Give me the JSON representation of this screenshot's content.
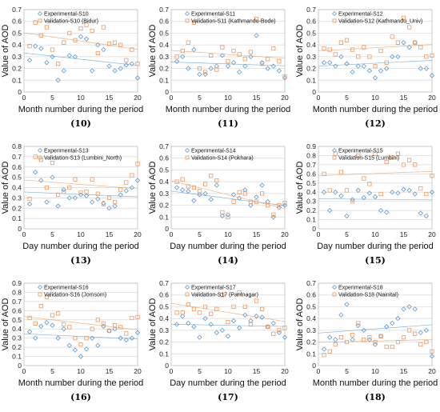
{
  "colors": {
    "experimental": "#5b9bd5",
    "validation": "#ed9a5e"
  },
  "chart_data": [
    {
      "type": "scatter",
      "label": "(10)",
      "xlabel": "Month number during the period",
      "ylabel": "Value of AOD",
      "xlim": [
        0,
        20
      ],
      "ylim": [
        0,
        0.7
      ],
      "xticks": [
        0,
        5,
        10,
        15,
        20
      ],
      "yticks": [
        0,
        0.1,
        0.2,
        0.3,
        0.4,
        0.5,
        0.6,
        0.7
      ],
      "series": [
        {
          "name": "Experimental-S10",
          "marker": "diamond",
          "x": [
            1,
            2,
            3,
            4,
            5,
            6,
            7,
            8,
            9,
            10,
            11,
            12,
            13,
            14,
            15,
            16,
            17,
            18,
            19,
            20
          ],
          "y": [
            0.27,
            0.39,
            0.37,
            0.25,
            0.3,
            0.1,
            0.18,
            0.31,
            0.3,
            0.47,
            0.45,
            0.18,
            0.4,
            0.36,
            0.22,
            0.18,
            0.2,
            0.23,
            0.24,
            0.12
          ]
        },
        {
          "name": "Validation-S10 (Bidur)",
          "marker": "square",
          "x": [
            1,
            2,
            3,
            4,
            5,
            6,
            7,
            8,
            9,
            10,
            11,
            12,
            13,
            14,
            15,
            16,
            17,
            18,
            19,
            20
          ],
          "y": [
            0.39,
            0.59,
            0.48,
            0.55,
            0.36,
            0.24,
            0.42,
            0.5,
            0.44,
            0.54,
            0.57,
            0.52,
            0.33,
            0.55,
            0.41,
            0.42,
            0.4,
            0.27,
            0.36,
            0.24
          ]
        }
      ]
    },
    {
      "type": "scatter",
      "label": "(11)",
      "xlabel": "Month number during the period",
      "ylabel": "Value of AOD",
      "xlim": [
        0,
        20
      ],
      "ylim": [
        0,
        0.7
      ],
      "xticks": [
        0,
        5,
        10,
        15,
        20
      ],
      "yticks": [
        0,
        0.1,
        0.2,
        0.3,
        0.4,
        0.5,
        0.6,
        0.7
      ],
      "series": [
        {
          "name": "Experimental-S11",
          "marker": "diamond",
          "x": [
            1,
            2,
            3,
            4,
            5,
            6,
            7,
            8,
            9,
            10,
            11,
            12,
            13,
            14,
            15,
            16,
            17,
            18,
            19,
            20
          ],
          "y": [
            0.26,
            0.3,
            0.2,
            0.36,
            0.15,
            0.15,
            0.2,
            0.22,
            0.31,
            0.22,
            0.25,
            0.17,
            0.22,
            0.3,
            0.48,
            0.25,
            0.2,
            0.22,
            0.18,
            0.12
          ]
        },
        {
          "name": "Validation-S11 (Kathmandu-Bode)",
          "marker": "square",
          "x": [
            1,
            2,
            3,
            4,
            5,
            6,
            7,
            8,
            9,
            10,
            11,
            12,
            13,
            14,
            15,
            16,
            17,
            18,
            19,
            20
          ],
          "y": [
            0.3,
            0.35,
            0.42,
            0.59,
            0.2,
            0.17,
            0.31,
            0.19,
            0.38,
            0.26,
            0.35,
            0.32,
            0.28,
            0.34,
            0.62,
            0.24,
            0.28,
            0.37,
            0.26,
            0.13
          ]
        }
      ]
    },
    {
      "type": "scatter",
      "label": "(12)",
      "xlabel": "Month number during the period",
      "ylabel": "Value of AOD",
      "xlim": [
        0,
        20
      ],
      "ylim": [
        0,
        0.7
      ],
      "xticks": [
        0,
        5,
        10,
        15,
        20
      ],
      "yticks": [
        0,
        0.1,
        0.2,
        0.3,
        0.4,
        0.5,
        0.6,
        0.7
      ],
      "series": [
        {
          "name": "Experimental-S12",
          "marker": "diamond",
          "x": [
            1,
            2,
            3,
            4,
            5,
            6,
            7,
            8,
            9,
            10,
            11,
            12,
            13,
            14,
            15,
            16,
            17,
            18,
            19,
            20
          ],
          "y": [
            0.25,
            0.25,
            0.22,
            0.3,
            0.24,
            0.17,
            0.22,
            0.22,
            0.18,
            0.12,
            0.18,
            0.2,
            0.3,
            0.3,
            0.42,
            0.38,
            0.42,
            0.2,
            0.2,
            0.14
          ]
        },
        {
          "name": "Validation-S12 (Kathmandu_Univ)",
          "marker": "square",
          "x": [
            1,
            2,
            3,
            4,
            5,
            6,
            7,
            8,
            9,
            10,
            11,
            12,
            13,
            14,
            15,
            16,
            17,
            18,
            19,
            20
          ],
          "y": [
            0.37,
            0.36,
            0.32,
            0.42,
            0.44,
            0.36,
            0.3,
            0.38,
            0.3,
            0.22,
            0.35,
            0.25,
            0.47,
            0.42,
            0.63,
            0.55,
            0.42,
            0.38,
            0.3,
            0.31
          ]
        }
      ]
    },
    {
      "type": "scatter",
      "label": "(13)",
      "xlabel": "Day number during the period",
      "ylabel": "Value of AOD",
      "xlim": [
        0,
        20
      ],
      "ylim": [
        0,
        0.8
      ],
      "xticks": [
        0,
        5,
        10,
        15,
        20
      ],
      "yticks": [
        0,
        0.1,
        0.2,
        0.3,
        0.4,
        0.5,
        0.6,
        0.7,
        0.8
      ],
      "series": [
        {
          "name": "Experimental-S13",
          "marker": "diamond",
          "x": [
            1,
            2,
            3,
            4,
            5,
            6,
            7,
            8,
            9,
            10,
            11,
            12,
            13,
            14,
            15,
            16,
            17,
            18,
            19,
            20
          ],
          "y": [
            0.24,
            0.55,
            0.47,
            0.26,
            0.5,
            0.22,
            0.38,
            0.3,
            0.3,
            0.33,
            0.32,
            0.26,
            0.29,
            0.25,
            0.2,
            0.22,
            0.33,
            0.37,
            0.4,
            0.47
          ]
        },
        {
          "name": "Validation-S13 (Lumbini_North)",
          "marker": "square",
          "x": [
            1,
            2,
            3,
            4,
            5,
            6,
            7,
            8,
            9,
            10,
            11,
            12,
            13,
            14,
            15,
            16,
            17,
            18,
            19,
            20
          ],
          "y": [
            0.29,
            0.7,
            0.67,
            0.4,
            0.64,
            0.33,
            0.36,
            0.4,
            0.48,
            0.35,
            0.36,
            0.48,
            0.34,
            0.24,
            0.3,
            0.26,
            0.38,
            0.45,
            0.52,
            0.63
          ]
        }
      ]
    },
    {
      "type": "scatter",
      "label": "(14)",
      "xlabel": "Day number during the period",
      "ylabel": "Value of AOD",
      "xlim": [
        0,
        20
      ],
      "ylim": [
        0,
        0.7
      ],
      "xticks": [
        0,
        5,
        10,
        15,
        20
      ],
      "yticks": [
        0,
        0.1,
        0.2,
        0.3,
        0.4,
        0.5,
        0.6,
        0.7
      ],
      "series": [
        {
          "name": "Experimental-S14",
          "marker": "diamond",
          "x": [
            1,
            2,
            3,
            4,
            5,
            6,
            7,
            8,
            9,
            10,
            11,
            12,
            13,
            14,
            15,
            16,
            17,
            18,
            19,
            20
          ],
          "y": [
            0.35,
            0.33,
            0.32,
            0.24,
            0.29,
            0.3,
            0.25,
            0.37,
            0.11,
            0.12,
            0.29,
            0.26,
            0.33,
            0.2,
            0.27,
            0.37,
            0.23,
            0.1,
            0.18,
            0.2
          ]
        },
        {
          "name": "Validation-S14 (Pokhara)",
          "marker": "square",
          "x": [
            1,
            2,
            3,
            4,
            5,
            6,
            7,
            8,
            9,
            10,
            11,
            12,
            13,
            14,
            15,
            16,
            17,
            18,
            19,
            20
          ],
          "y": [
            0.4,
            0.42,
            0.36,
            0.35,
            0.32,
            0.38,
            0.45,
            0.41,
            0.14,
            0.1,
            0.23,
            0.31,
            0.3,
            0.23,
            0.23,
            0.3,
            0.2,
            0.12,
            0.2,
            0.22
          ]
        }
      ]
    },
    {
      "type": "scatter",
      "label": "(15)",
      "xlabel": "Day number during the period",
      "ylabel": "Value of AOD",
      "xlim": [
        0,
        20
      ],
      "ylim": [
        0,
        0.9
      ],
      "xticks": [
        0,
        5,
        10,
        15,
        20
      ],
      "yticks": [
        0,
        0.1,
        0.2,
        0.3,
        0.4,
        0.5,
        0.6,
        0.7,
        0.8,
        0.9
      ],
      "series": [
        {
          "name": "Experimental-S15",
          "marker": "diamond",
          "x": [
            1,
            2,
            3,
            4,
            5,
            6,
            7,
            8,
            9,
            10,
            11,
            12,
            13,
            14,
            15,
            16,
            17,
            18,
            19,
            20
          ],
          "y": [
            0.4,
            0.2,
            0.4,
            0.36,
            0.14,
            0.32,
            0.42,
            0.34,
            0.39,
            0.35,
            0.2,
            0.18,
            0.4,
            0.39,
            0.43,
            0.42,
            0.38,
            0.17,
            0.14,
            0.4
          ]
        },
        {
          "name": "Validation-S15 (Lumbini)",
          "marker": "square",
          "x": [
            1,
            2,
            3,
            4,
            5,
            6,
            7,
            8,
            9,
            10,
            11,
            12,
            13,
            14,
            15,
            16,
            17,
            18,
            19,
            20
          ],
          "y": [
            0.6,
            0.42,
            0.82,
            0.62,
            0.42,
            0.3,
            0.8,
            0.55,
            0.49,
            0.82,
            0.38,
            0.73,
            0.78,
            0.82,
            0.7,
            0.75,
            0.7,
            0.44,
            0.38,
            0.58
          ]
        }
      ]
    },
    {
      "type": "scatter",
      "label": "(16)",
      "xlabel": "Month number during the period",
      "ylabel": "Value of AOD",
      "xlim": [
        0,
        20
      ],
      "ylim": [
        0,
        0.9
      ],
      "xticks": [
        0,
        5,
        10,
        15,
        20
      ],
      "yticks": [
        0,
        0.1,
        0.2,
        0.3,
        0.4,
        0.5,
        0.6,
        0.7,
        0.8,
        0.9
      ],
      "series": [
        {
          "name": "Experimental-S16",
          "marker": "diamond",
          "x": [
            1,
            2,
            3,
            4,
            5,
            6,
            7,
            8,
            9,
            10,
            11,
            12,
            13,
            14,
            15,
            16,
            17,
            18,
            19,
            20
          ],
          "y": [
            0.37,
            0.3,
            0.43,
            0.47,
            0.44,
            0.3,
            0.4,
            0.22,
            0.17,
            0.1,
            0.18,
            0.3,
            0.22,
            0.43,
            0.38,
            0.4,
            0.3,
            0.28,
            0.3,
            0.36
          ]
        },
        {
          "name": "Validation-S16 (Jomsom)",
          "marker": "square",
          "x": [
            1,
            2,
            3,
            4,
            5,
            6,
            7,
            8,
            9,
            10,
            11,
            12,
            13,
            14,
            15,
            16,
            17,
            18,
            19,
            20
          ],
          "y": [
            0.52,
            0.46,
            0.65,
            0.75,
            0.55,
            0.57,
            0.45,
            0.42,
            0.3,
            0.23,
            0.3,
            0.4,
            0.5,
            0.46,
            0.38,
            0.44,
            0.42,
            0.35,
            0.52,
            0.53
          ]
        }
      ]
    },
    {
      "type": "scatter",
      "label": "(17)",
      "xlabel": "Day number during the period",
      "ylabel": "Value of AOD",
      "xlim": [
        0,
        20
      ],
      "ylim": [
        0,
        0.7
      ],
      "xticks": [
        0,
        5,
        10,
        15,
        20
      ],
      "yticks": [
        0,
        0.1,
        0.2,
        0.3,
        0.4,
        0.5,
        0.6,
        0.7
      ],
      "series": [
        {
          "name": "Experimental-S17",
          "marker": "diamond",
          "x": [
            1,
            2,
            3,
            4,
            5,
            6,
            7,
            8,
            9,
            10,
            11,
            12,
            13,
            14,
            15,
            16,
            17,
            18,
            19,
            20
          ],
          "y": [
            0.35,
            0.42,
            0.36,
            0.33,
            0.24,
            0.4,
            0.35,
            0.28,
            0.3,
            0.25,
            0.38,
            0.32,
            0.43,
            0.38,
            0.42,
            0.41,
            0.33,
            0.36,
            0.28,
            0.24
          ]
        },
        {
          "name": "Validation-S17 (Pantnagar)",
          "marker": "square",
          "x": [
            1,
            2,
            3,
            4,
            5,
            6,
            7,
            8,
            9,
            10,
            11,
            12,
            13,
            14,
            15,
            16,
            17,
            18,
            19,
            20
          ],
          "y": [
            0.45,
            0.45,
            0.52,
            0.48,
            0.45,
            0.5,
            0.44,
            0.48,
            0.6,
            0.37,
            0.5,
            0.62,
            0.5,
            0.35,
            0.55,
            0.48,
            0.33,
            0.27,
            0.3,
            0.32
          ]
        }
      ]
    },
    {
      "type": "scatter",
      "label": "(18)",
      "xlabel": "Month number during the period",
      "ylabel": "Value of AOD",
      "xlim": [
        0,
        20
      ],
      "ylim": [
        0,
        0.7
      ],
      "xticks": [
        0,
        5,
        10,
        15,
        20
      ],
      "yticks": [
        0,
        0.1,
        0.2,
        0.3,
        0.4,
        0.5,
        0.6,
        0.7
      ],
      "series": [
        {
          "name": "Experimental-S18",
          "marker": "diamond",
          "x": [
            1,
            2,
            3,
            4,
            5,
            6,
            7,
            8,
            9,
            10,
            11,
            12,
            13,
            14,
            15,
            16,
            17,
            18,
            19,
            20
          ],
          "y": [
            0.14,
            0.24,
            0.22,
            0.43,
            0.52,
            0.22,
            0.34,
            0.3,
            0.22,
            0.18,
            0.25,
            0.33,
            0.36,
            0.4,
            0.48,
            0.5,
            0.48,
            0.28,
            0.3,
            0.08
          ]
        },
        {
          "name": "Validation-S18 (Nainital)",
          "marker": "square",
          "x": [
            1,
            2,
            3,
            4,
            5,
            6,
            7,
            8,
            9,
            10,
            11,
            12,
            13,
            14,
            15,
            16,
            17,
            18,
            19,
            20
          ],
          "y": [
            0.09,
            0.12,
            0.18,
            0.24,
            0.2,
            0.26,
            0.36,
            0.22,
            0.24,
            0.2,
            0.25,
            0.16,
            0.16,
            0.2,
            0.24,
            0.3,
            0.27,
            0.18,
            0.2,
            0.12
          ]
        }
      ]
    }
  ]
}
